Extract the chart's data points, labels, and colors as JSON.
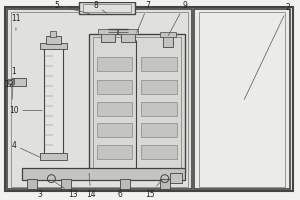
{
  "bg_color": "#f2f2ee",
  "line_color": "#999990",
  "dark_line": "#444440",
  "med_line": "#777770",
  "fill_outer": "#e8e8e4",
  "fill_inner": "#e0e0dc",
  "fill_chamber": "#d8d8d4",
  "fill_dark": "#c4c4c0",
  "label_color": "#222220"
}
